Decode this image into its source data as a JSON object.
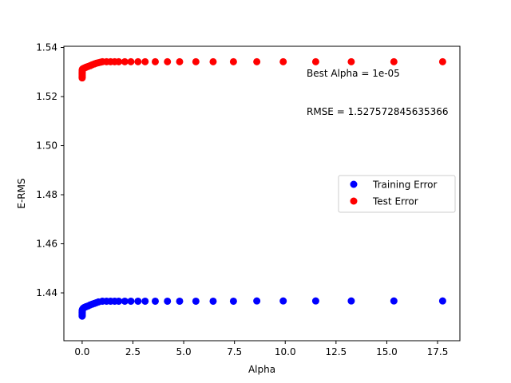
{
  "chart_data": {
    "type": "scatter",
    "title": "",
    "xlabel": "Alpha",
    "ylabel": "E-RMS",
    "xlim": [
      -0.9,
      18.6
    ],
    "ylim": [
      1.4205,
      1.5405
    ],
    "xticks": [
      0.0,
      2.5,
      5.0,
      7.5,
      10.0,
      12.5,
      15.0,
      17.5
    ],
    "xtick_labels": [
      "0.0",
      "2.5",
      "5.0",
      "7.5",
      "10.0",
      "12.5",
      "15.0",
      "17.5"
    ],
    "yticks": [
      1.44,
      1.46,
      1.48,
      1.5,
      1.52,
      1.54
    ],
    "ytick_labels": [
      "1.44",
      "1.46",
      "1.48",
      "1.50",
      "1.52",
      "1.54"
    ],
    "grid": false,
    "legend_position": "center-right",
    "annotations": [
      "Best Alpha = 1e-05",
      "RMSE = 1.527572845635366"
    ],
    "series": [
      {
        "name": "Training Error",
        "color": "#0000ff",
        "x": [
          1e-05,
          2e-05,
          5e-05,
          0.0001,
          0.0002,
          0.0005,
          0.001,
          0.002,
          0.005,
          0.01,
          0.02,
          0.05,
          0.1,
          0.15,
          0.2,
          0.3,
          0.4,
          0.5,
          0.6,
          0.7,
          0.8,
          1.0,
          1.2,
          1.4,
          1.6,
          1.8,
          2.1,
          2.4,
          2.75,
          3.1,
          3.6,
          4.2,
          4.8,
          5.6,
          6.45,
          7.45,
          8.6,
          9.9,
          11.5,
          13.25,
          15.35,
          17.75
        ],
        "y": [
          1.4305,
          1.4308,
          1.4311,
          1.4314,
          1.4317,
          1.432,
          1.4323,
          1.4326,
          1.4329,
          1.4331,
          1.4333,
          1.4337,
          1.434,
          1.4342,
          1.4344,
          1.4347,
          1.4351,
          1.4354,
          1.4357,
          1.436,
          1.4363,
          1.4366,
          1.4366,
          1.4366,
          1.4366,
          1.4366,
          1.4366,
          1.4366,
          1.4366,
          1.4366,
          1.4366,
          1.4366,
          1.4366,
          1.4366,
          1.4366,
          1.4366,
          1.4367,
          1.4367,
          1.4367,
          1.4367,
          1.4367,
          1.4367
        ]
      },
      {
        "name": "Test Error",
        "color": "#ff0000",
        "x": [
          1e-05,
          2e-05,
          5e-05,
          0.0001,
          0.0002,
          0.0005,
          0.001,
          0.002,
          0.005,
          0.01,
          0.02,
          0.05,
          0.1,
          0.15,
          0.2,
          0.3,
          0.4,
          0.5,
          0.6,
          0.7,
          0.8,
          0.9,
          1.0,
          1.2,
          1.4,
          1.6,
          1.8,
          2.1,
          2.4,
          2.75,
          3.1,
          3.6,
          4.2,
          4.8,
          5.6,
          6.45,
          7.45,
          8.6,
          9.9,
          11.5,
          13.25,
          15.35,
          17.75
        ],
        "y": [
          1.5276,
          1.528,
          1.5284,
          1.5288,
          1.5292,
          1.5296,
          1.53,
          1.5304,
          1.5308,
          1.531,
          1.5312,
          1.5314,
          1.5316,
          1.5318,
          1.532,
          1.5323,
          1.5326,
          1.533,
          1.5333,
          1.5336,
          1.5338,
          1.534,
          1.5342,
          1.5342,
          1.5342,
          1.5342,
          1.5342,
          1.5342,
          1.5342,
          1.5342,
          1.5342,
          1.5342,
          1.5342,
          1.5342,
          1.5342,
          1.5342,
          1.5342,
          1.5342,
          1.5342,
          1.5342,
          1.5342,
          1.5342,
          1.5342
        ]
      }
    ]
  }
}
